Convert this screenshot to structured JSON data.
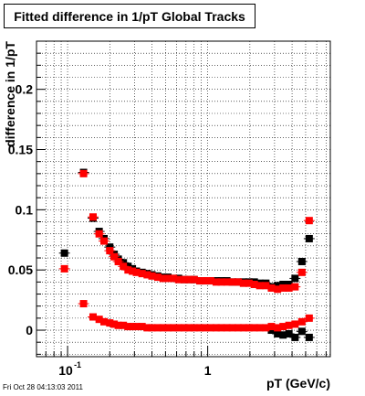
{
  "chart_data": {
    "type": "scatter",
    "title": "Fitted difference in 1/pT  Global Tracks",
    "xlabel": "pT (GeV/c)",
    "ylabel": "difference in 1/pT",
    "x_scale": "log",
    "xlim": [
      0.06,
      7.5
    ],
    "ylim": [
      -0.022,
      0.24
    ],
    "grid": true,
    "x_tick_labels": [
      {
        "value": 0.1,
        "base": "10",
        "exp": "-1"
      },
      {
        "value": 1,
        "text": "1"
      }
    ],
    "y_ticks": [
      0,
      0.05,
      0.1,
      0.15,
      0.2
    ],
    "y_tick_labels": [
      "0",
      "0.05",
      "0.1",
      "0.15",
      "0.2"
    ],
    "colors": {
      "black_series": "#000000",
      "red_series": "#ff0000"
    },
    "series": [
      {
        "marker": "square",
        "color": "#000000",
        "points": [
          [
            0.095,
            0.064
          ],
          [
            0.13,
            0.131
          ],
          [
            0.152,
            0.093
          ],
          [
            0.168,
            0.082
          ],
          [
            0.182,
            0.076
          ],
          [
            0.2,
            0.069
          ],
          [
            0.215,
            0.063
          ],
          [
            0.23,
            0.059
          ],
          [
            0.25,
            0.056
          ],
          [
            0.27,
            0.053
          ],
          [
            0.29,
            0.051
          ],
          [
            0.31,
            0.049
          ],
          [
            0.34,
            0.048
          ],
          [
            0.37,
            0.047
          ],
          [
            0.4,
            0.046
          ],
          [
            0.44,
            0.045
          ],
          [
            0.48,
            0.044
          ],
          [
            0.52,
            0.044
          ],
          [
            0.57,
            0.043
          ],
          [
            0.62,
            0.043
          ],
          [
            0.68,
            0.042
          ],
          [
            0.74,
            0.042
          ],
          [
            0.8,
            0.042
          ],
          [
            0.88,
            0.041
          ],
          [
            0.96,
            0.041
          ],
          [
            1.05,
            0.041
          ],
          [
            1.15,
            0.041
          ],
          [
            1.25,
            0.041
          ],
          [
            1.37,
            0.041
          ],
          [
            1.5,
            0.04
          ],
          [
            1.65,
            0.04
          ],
          [
            1.8,
            0.04
          ],
          [
            1.97,
            0.04
          ],
          [
            2.15,
            0.04
          ],
          [
            2.35,
            0.039
          ],
          [
            2.6,
            0.039
          ],
          [
            2.85,
            0.036
          ],
          [
            3.15,
            0.037
          ],
          [
            3.45,
            0.038
          ],
          [
            3.8,
            0.038
          ],
          [
            4.2,
            0.043
          ],
          [
            4.7,
            0.057
          ],
          [
            5.3,
            0.076
          ],
          [
            2.85,
            0.0
          ],
          [
            3.15,
            -0.003
          ],
          [
            3.45,
            -0.004
          ],
          [
            3.8,
            -0.003
          ],
          [
            4.2,
            -0.006
          ],
          [
            4.7,
            -0.001
          ],
          [
            5.3,
            -0.006
          ]
        ]
      },
      {
        "marker": "square",
        "color": "#ff0000",
        "points": [
          [
            0.095,
            0.051
          ],
          [
            0.13,
            0.13
          ],
          [
            0.152,
            0.094
          ],
          [
            0.168,
            0.08
          ],
          [
            0.182,
            0.074
          ],
          [
            0.2,
            0.066
          ],
          [
            0.215,
            0.061
          ],
          [
            0.23,
            0.057
          ],
          [
            0.25,
            0.053
          ],
          [
            0.27,
            0.05
          ],
          [
            0.29,
            0.049
          ],
          [
            0.31,
            0.048
          ],
          [
            0.34,
            0.047
          ],
          [
            0.37,
            0.046
          ],
          [
            0.4,
            0.045
          ],
          [
            0.44,
            0.044
          ],
          [
            0.48,
            0.043
          ],
          [
            0.52,
            0.043
          ],
          [
            0.57,
            0.043
          ],
          [
            0.62,
            0.042
          ],
          [
            0.68,
            0.042
          ],
          [
            0.74,
            0.042
          ],
          [
            0.8,
            0.042
          ],
          [
            0.88,
            0.041
          ],
          [
            0.96,
            0.041
          ],
          [
            1.05,
            0.041
          ],
          [
            1.15,
            0.04
          ],
          [
            1.25,
            0.04
          ],
          [
            1.37,
            0.04
          ],
          [
            1.5,
            0.04
          ],
          [
            1.65,
            0.04
          ],
          [
            1.8,
            0.039
          ],
          [
            1.97,
            0.039
          ],
          [
            2.15,
            0.038
          ],
          [
            2.35,
            0.037
          ],
          [
            2.6,
            0.037
          ],
          [
            2.85,
            0.035
          ],
          [
            3.15,
            0.034
          ],
          [
            3.45,
            0.035
          ],
          [
            3.8,
            0.035
          ],
          [
            4.2,
            0.036
          ],
          [
            4.7,
            0.048
          ],
          [
            5.3,
            0.091
          ],
          [
            0.13,
            0.022
          ],
          [
            0.152,
            0.011
          ],
          [
            0.168,
            0.009
          ],
          [
            0.182,
            0.007
          ],
          [
            0.2,
            0.006
          ],
          [
            0.215,
            0.005
          ],
          [
            0.23,
            0.004
          ],
          [
            0.25,
            0.004
          ],
          [
            0.27,
            0.003
          ],
          [
            0.29,
            0.003
          ],
          [
            0.31,
            0.003
          ],
          [
            0.34,
            0.003
          ],
          [
            0.37,
            0.002
          ],
          [
            0.4,
            0.002
          ],
          [
            0.44,
            0.002
          ],
          [
            0.48,
            0.002
          ],
          [
            0.52,
            0.002
          ],
          [
            0.57,
            0.002
          ],
          [
            0.62,
            0.002
          ],
          [
            0.68,
            0.002
          ],
          [
            0.74,
            0.002
          ],
          [
            0.8,
            0.002
          ],
          [
            0.88,
            0.002
          ],
          [
            0.96,
            0.002
          ],
          [
            1.05,
            0.002
          ],
          [
            1.15,
            0.002
          ],
          [
            1.25,
            0.002
          ],
          [
            1.37,
            0.002
          ],
          [
            1.5,
            0.002
          ],
          [
            1.65,
            0.002
          ],
          [
            1.8,
            0.002
          ],
          [
            1.97,
            0.002
          ],
          [
            2.15,
            0.002
          ],
          [
            2.35,
            0.002
          ],
          [
            2.6,
            0.002
          ],
          [
            2.85,
            0.003
          ],
          [
            3.15,
            0.002
          ],
          [
            3.45,
            0.003
          ],
          [
            3.8,
            0.004
          ],
          [
            4.2,
            0.005
          ],
          [
            4.7,
            0.007
          ],
          [
            5.3,
            0.01
          ]
        ]
      }
    ]
  },
  "footer_text": "Fri Oct 28 04:13:03 2011"
}
